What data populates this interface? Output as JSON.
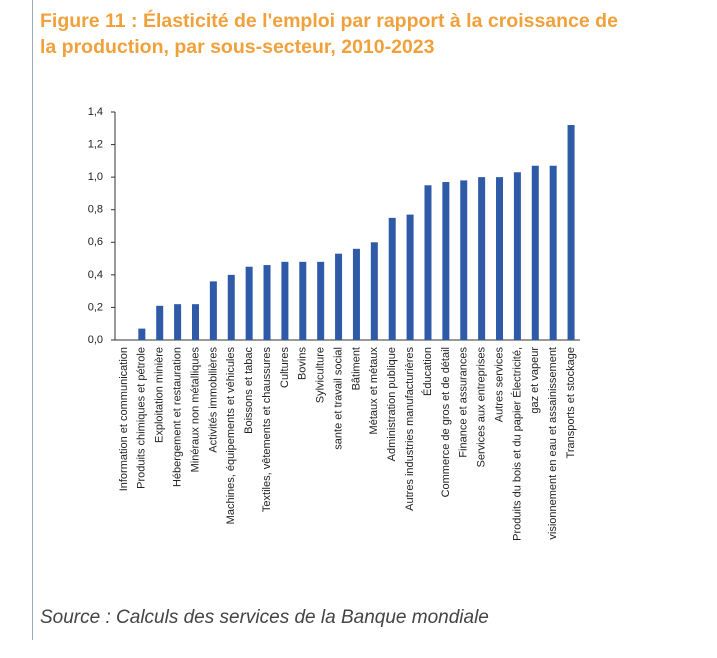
{
  "chart_data": {
    "type": "bar",
    "title": "Figure 11 : Élasticité de l'emploi par rapport à la croissance de la production, par sous-secteur, 2010-2023",
    "source": "Source : Calculs des services de la Banque mondiale",
    "categories": [
      "Information et communication",
      "Produits chimiques et pétrole",
      "Exploitation minière",
      "Hébergement et restauration",
      "Minéraux non métalliques",
      "Activités immobilières",
      "Machines, équipements et véhicules",
      "Boissons et tabac",
      "Textiles, vêtements et chaussures",
      "Cultures",
      "Bovins",
      "Sylviculture",
      "sante et travail social",
      "Bâtiment",
      "Métaux et métaux",
      "Administration publique",
      "Autres industries manufacturières",
      "Éducation",
      "Commerce de gros et de détail",
      "Finance et assurances",
      "Services aux entreprises",
      "Autres services",
      "Produits du bois et du papier Électricité,",
      "gaz et vapeur",
      "visionnement en eau et assainissement",
      "Transports et stockage"
    ],
    "values": [
      0,
      0.07,
      0.21,
      0.22,
      0.22,
      0.36,
      0.4,
      0.45,
      0.46,
      0.48,
      0.48,
      0.48,
      0.53,
      0.56,
      0.6,
      0.75,
      0.77,
      0.95,
      0.97,
      0.98,
      1.0,
      1.0,
      1.03,
      1.07,
      1.07,
      1.32
    ],
    "color": "#2e5aa8",
    "ylim": [
      0,
      1.4
    ],
    "yticks": [
      {
        "value": 0,
        "label": "0,0"
      },
      {
        "value": 0.2,
        "label": "0,2"
      },
      {
        "value": 0.4,
        "label": "0,4"
      },
      {
        "value": 0.6,
        "label": "0,6"
      },
      {
        "value": 0.8,
        "label": "0,8"
      },
      {
        "value": 1.0,
        "label": "1,0"
      },
      {
        "value": 1.2,
        "label": "1,2"
      },
      {
        "value": 1.4,
        "label": "1,4"
      }
    ],
    "grid": false
  }
}
